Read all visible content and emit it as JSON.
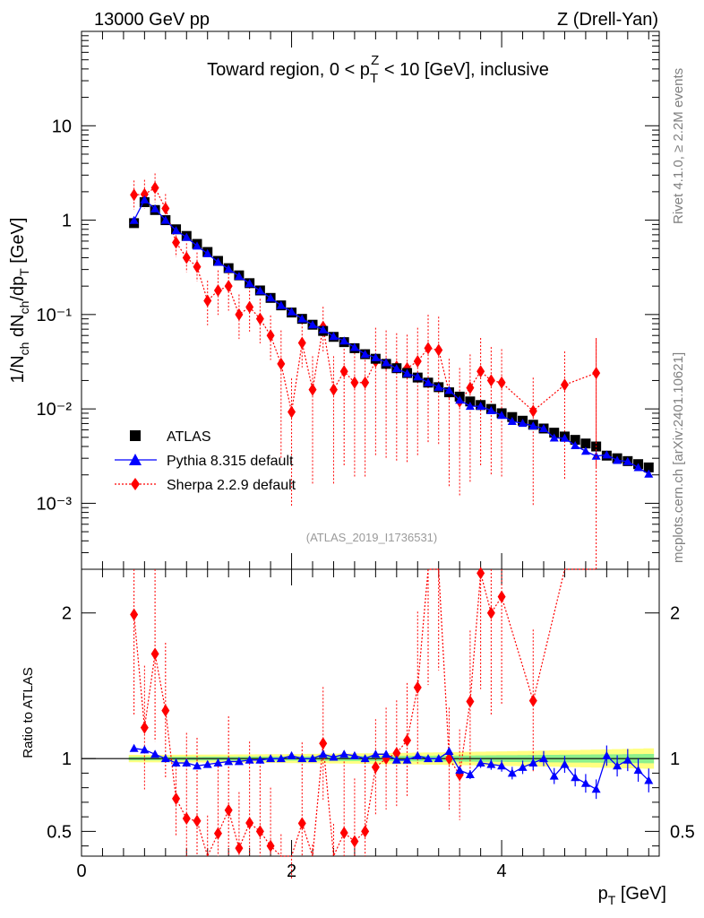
{
  "header": {
    "left": "13000 GeV pp",
    "right": "Z (Drell-Yan)"
  },
  "side_labels": {
    "rivet": "Rivet 4.1.0, ≥ 2.2M events",
    "mcplots": "mcplots.cern.ch [arXiv:2401.10621]"
  },
  "chart_data": {
    "type": "scatter",
    "title": "Toward region, 0 < p_T^Z < 10 [GeV], inclusive",
    "xlabel": "p_T [GeV]",
    "ylabel": "1/N_ch dN_ch/dp_T [GeV]",
    "ratio_ylabel": "Ratio to ATLAS",
    "analysis_tag": "(ATLAS_2019_I1736531)",
    "xlim": [
      0,
      5.5
    ],
    "ylim_log": [
      0.0002,
      100
    ],
    "ratio_ylim": [
      0.33,
      2.3
    ],
    "x_ticks": [
      "0",
      "2",
      "4"
    ],
    "y_ticks": [
      "10⁻³",
      "10⁻²",
      "10⁻¹",
      "1",
      "10"
    ],
    "ratio_ticks": [
      "0.5",
      "1",
      "2"
    ],
    "legend": {
      "position": "bottom-left",
      "entries": [
        "ATLAS",
        "Pythia 8.315 default",
        "Sherpa 2.2.9 default"
      ]
    },
    "series": [
      {
        "name": "ATLAS",
        "color": "#000000",
        "marker": "square",
        "x": [
          0.5,
          0.6,
          0.7,
          0.8,
          0.9,
          1.0,
          1.1,
          1.2,
          1.3,
          1.4,
          1.5,
          1.6,
          1.7,
          1.8,
          1.9,
          2.0,
          2.1,
          2.2,
          2.3,
          2.4,
          2.5,
          2.6,
          2.7,
          2.8,
          2.9,
          3.0,
          3.1,
          3.2,
          3.3,
          3.4,
          3.5,
          3.6,
          3.7,
          3.8,
          3.9,
          4.0,
          4.1,
          4.2,
          4.3,
          4.4,
          4.5,
          4.6,
          4.7,
          4.8,
          4.9,
          5.0,
          5.1,
          5.2,
          5.3,
          5.4
        ],
        "y": [
          0.93,
          1.55,
          1.28,
          1.0,
          0.8,
          0.68,
          0.56,
          0.46,
          0.37,
          0.31,
          0.26,
          0.215,
          0.18,
          0.15,
          0.125,
          0.105,
          0.09,
          0.078,
          0.067,
          0.058,
          0.051,
          0.044,
          0.038,
          0.034,
          0.03,
          0.027,
          0.024,
          0.0215,
          0.019,
          0.017,
          0.015,
          0.0135,
          0.012,
          0.011,
          0.01,
          0.009,
          0.0082,
          0.0075,
          0.0068,
          0.0062,
          0.0056,
          0.0051,
          0.0047,
          0.0043,
          0.004,
          0.0032,
          0.003,
          0.0028,
          0.0026,
          0.0024
        ]
      },
      {
        "name": "Pythia 8.315 default",
        "color": "#0000ff",
        "marker": "triangle",
        "x": [
          0.5,
          0.6,
          0.7,
          0.8,
          0.9,
          1.0,
          1.1,
          1.2,
          1.3,
          1.4,
          1.5,
          1.6,
          1.7,
          1.8,
          1.9,
          2.0,
          2.1,
          2.2,
          2.3,
          2.4,
          2.5,
          2.6,
          2.7,
          2.8,
          2.9,
          3.0,
          3.1,
          3.2,
          3.3,
          3.4,
          3.5,
          3.6,
          3.7,
          3.8,
          3.9,
          4.0,
          4.1,
          4.2,
          4.3,
          4.4,
          4.5,
          4.6,
          4.7,
          4.8,
          4.9,
          5.0,
          5.1,
          5.2,
          5.3,
          5.4
        ],
        "ratio": [
          1.07,
          1.06,
          1.03,
          1.0,
          0.97,
          0.97,
          0.95,
          0.96,
          0.97,
          0.98,
          0.98,
          0.99,
          0.99,
          1.0,
          1.0,
          1.02,
          1.0,
          1.0,
          1.03,
          1.01,
          1.03,
          1.02,
          1.0,
          1.03,
          1.03,
          0.99,
          0.99,
          1.02,
          1.0,
          1.0,
          1.05,
          0.92,
          0.89,
          0.97,
          0.96,
          0.95,
          0.9,
          0.94,
          0.97,
          1.0,
          0.88,
          0.96,
          0.87,
          0.83,
          0.79,
          1.02,
          0.95,
          0.99,
          0.92,
          0.85
        ]
      },
      {
        "name": "Sherpa 2.2.9 default",
        "color": "#ff0000",
        "marker": "diamond",
        "x": [
          0.5,
          0.6,
          0.7,
          0.8,
          0.9,
          1.0,
          1.1,
          1.2,
          1.3,
          1.4,
          1.5,
          1.6,
          1.7,
          1.8,
          1.9,
          2.0,
          2.1,
          2.2,
          2.3,
          2.4,
          2.5,
          2.6,
          2.7,
          2.8,
          2.9,
          3.0,
          3.1,
          3.2,
          3.3,
          3.4,
          3.5,
          3.6,
          3.7,
          3.8,
          3.9,
          4.0,
          4.3,
          4.6,
          4.9
        ],
        "y": [
          1.85,
          1.88,
          2.2,
          1.33,
          0.58,
          0.4,
          0.32,
          0.14,
          0.18,
          0.2,
          0.1,
          0.12,
          0.09,
          0.06,
          0.03,
          0.0093,
          0.05,
          0.016,
          0.074,
          0.016,
          0.025,
          0.019,
          0.019,
          0.032,
          0.03,
          0.028,
          0.027,
          0.032,
          0.044,
          0.042,
          0.015,
          0.012,
          0.0167,
          0.025,
          0.02,
          0.019,
          0.0095,
          0.018,
          0.024
        ]
      }
    ]
  }
}
